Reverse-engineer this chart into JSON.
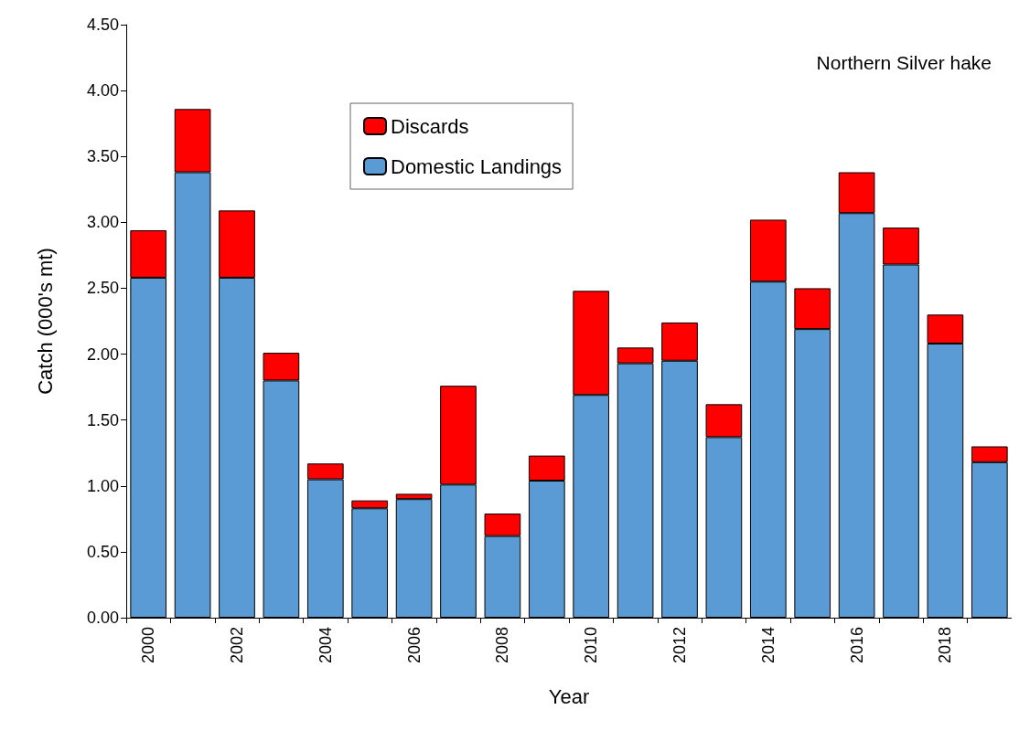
{
  "chart_data": {
    "type": "bar",
    "stacked": true,
    "xlabel": "Year",
    "ylabel": "Catch (000's mt)",
    "annotations": [
      "Northern Silver hake"
    ],
    "categories": [
      "2000",
      null,
      "2002",
      null,
      "2004",
      null,
      "2006",
      null,
      "2008",
      null,
      "2010",
      null,
      "2012",
      null,
      "2014",
      null,
      "2016",
      null,
      "2018",
      null
    ],
    "series": [
      {
        "name": "Domestic Landings",
        "color": "#5b9bd5",
        "values": [
          2.58,
          3.38,
          2.58,
          1.8,
          1.05,
          0.83,
          0.9,
          1.01,
          0.62,
          1.04,
          1.69,
          1.93,
          1.95,
          1.37,
          2.55,
          2.19,
          3.07,
          2.68,
          2.08,
          1.18
        ]
      },
      {
        "name": "Discards",
        "color": "#ff0000",
        "values": [
          0.36,
          0.48,
          0.51,
          0.21,
          0.12,
          0.06,
          0.04,
          0.75,
          0.17,
          0.19,
          0.79,
          0.12,
          0.29,
          0.25,
          0.47,
          0.31,
          0.31,
          0.28,
          0.22,
          0.12
        ]
      }
    ],
    "ylim": [
      0,
      4.5
    ],
    "yticks": [
      {
        "value": 0,
        "label": "0.00"
      },
      {
        "value": 0.5,
        "label": "0.50"
      },
      {
        "value": 1,
        "label": "1.00"
      },
      {
        "value": 1.5,
        "label": "1.50"
      },
      {
        "value": 2,
        "label": "2.00"
      },
      {
        "value": 2.5,
        "label": "2.50"
      },
      {
        "value": 3,
        "label": "3.00"
      },
      {
        "value": 3.5,
        "label": "3.50"
      },
      {
        "value": 4,
        "label": "4.00"
      },
      {
        "value": 4.5,
        "label": "4.50"
      }
    ],
    "grid": false,
    "legend": "top"
  }
}
